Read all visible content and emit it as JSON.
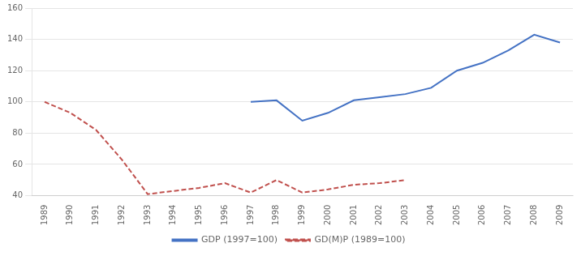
{
  "chart_data": {
    "type": "line",
    "categories": [
      "1989",
      "1990",
      "1991",
      "1992",
      "1993",
      "1994",
      "1995",
      "1996",
      "1997",
      "1998",
      "1999",
      "2000",
      "2001",
      "2002",
      "2003",
      "2004",
      "2005",
      "2006",
      "2007",
      "2008",
      "2009"
    ],
    "series": [
      {
        "name": "GDP (1997=100)",
        "color": "#4472C4",
        "line_style": "solid",
        "values": [
          null,
          null,
          null,
          null,
          null,
          null,
          null,
          null,
          100,
          101,
          88,
          93,
          101,
          103,
          105,
          109,
          120,
          125,
          133,
          143,
          138
        ]
      },
      {
        "name": "GD(M)P (1989=100)",
        "color": "#C0504D",
        "line_style": "dashed",
        "values": [
          100,
          93,
          82,
          63,
          41,
          43,
          45,
          48,
          42,
          50,
          42,
          44,
          47,
          48,
          50,
          null,
          null,
          null,
          null,
          null,
          null
        ]
      }
    ],
    "ylim": [
      40,
      160
    ],
    "yticks": [
      40,
      60,
      80,
      100,
      120,
      140,
      160
    ],
    "grid": true,
    "legend": "bottom"
  }
}
